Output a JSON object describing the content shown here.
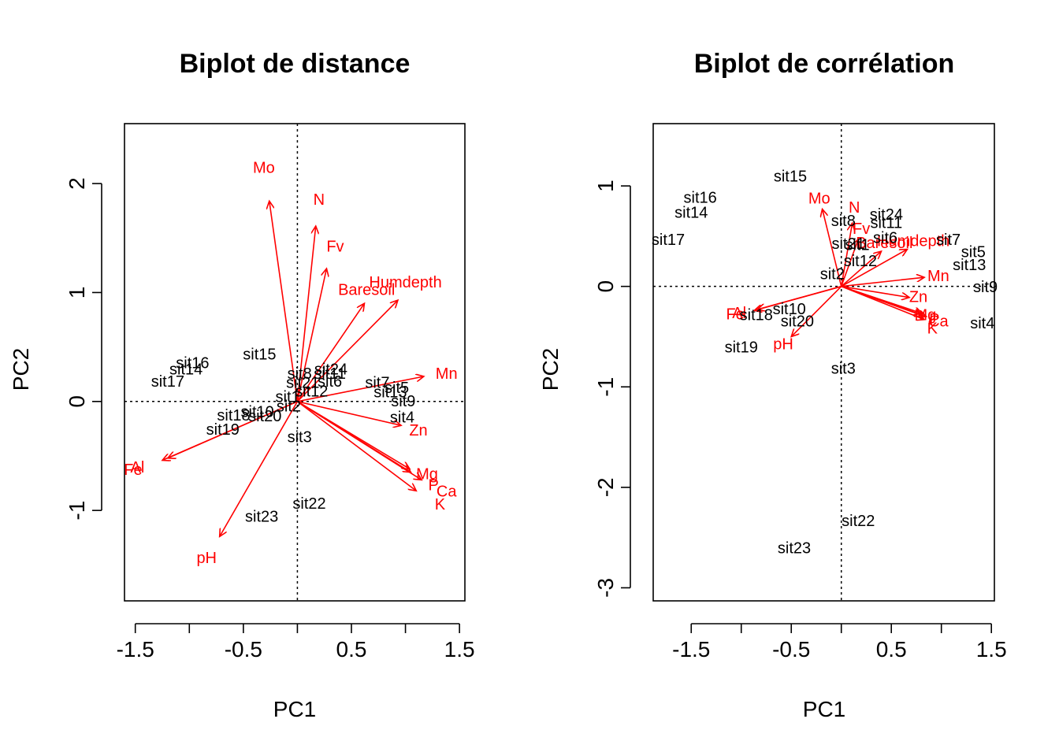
{
  "colors": {
    "sites": "#000000",
    "variables": "#ff0000"
  },
  "chart_data": [
    {
      "type": "scatter",
      "title": "Biplot de distance",
      "xlabel": "PC1",
      "ylabel": "PC2",
      "xlim": [
        -1.6,
        1.55
      ],
      "ylim": [
        -1.83,
        2.55
      ],
      "xticks": [
        -1.5,
        -1.0,
        -0.5,
        0.0,
        0.5,
        1.0,
        1.5
      ],
      "xtick_labels": [
        "-1.5",
        "",
        "-0.5",
        "",
        "0.5",
        "",
        "1.5"
      ],
      "yticks": [
        -1,
        0,
        1,
        2
      ],
      "ytick_labels": [
        "-1",
        "0",
        "1",
        "2"
      ],
      "sites": [
        {
          "label": "sit1",
          "x": -0.09,
          "y": 0.04
        },
        {
          "label": "sit2",
          "x": -0.08,
          "y": -0.05
        },
        {
          "label": "sit3",
          "x": 0.02,
          "y": -0.33
        },
        {
          "label": "sit4",
          "x": 0.97,
          "y": -0.15
        },
        {
          "label": "sit5",
          "x": 0.92,
          "y": 0.12
        },
        {
          "label": "sit6",
          "x": 0.3,
          "y": 0.18
        },
        {
          "label": "sit7",
          "x": 0.74,
          "y": 0.17
        },
        {
          "label": "sit8",
          "x": 0.02,
          "y": 0.25
        },
        {
          "label": "sit9",
          "x": 0.98,
          "y": 0.0
        },
        {
          "label": "sit10",
          "x": -0.37,
          "y": -0.1
        },
        {
          "label": "sit11",
          "x": 0.3,
          "y": 0.25
        },
        {
          "label": "sit12",
          "x": 0.13,
          "y": 0.09
        },
        {
          "label": "sit13",
          "x": 0.86,
          "y": 0.08
        },
        {
          "label": "sit14",
          "x": -1.03,
          "y": 0.29
        },
        {
          "label": "sit15",
          "x": -0.35,
          "y": 0.43
        },
        {
          "label": "sit16",
          "x": -0.97,
          "y": 0.35
        },
        {
          "label": "sit17",
          "x": -1.2,
          "y": 0.18
        },
        {
          "label": "sit18",
          "x": -0.59,
          "y": -0.13
        },
        {
          "label": "sit19",
          "x": -0.69,
          "y": -0.26
        },
        {
          "label": "sit20",
          "x": -0.3,
          "y": -0.14
        },
        {
          "label": "sit21",
          "x": 0.05,
          "y": 0.17
        },
        {
          "label": "sit22",
          "x": 0.11,
          "y": -0.94
        },
        {
          "label": "sit23",
          "x": -0.33,
          "y": -1.06
        },
        {
          "label": "sit24",
          "x": 0.31,
          "y": 0.29
        }
      ],
      "variables": [
        {
          "label": "N",
          "x": 0.17,
          "y": 1.61,
          "lx": 0.2,
          "ly": 1.85
        },
        {
          "label": "P",
          "x": 1.05,
          "y": -0.65,
          "lx": 1.26,
          "ly": -0.77
        },
        {
          "label": "K",
          "x": 1.1,
          "y": -0.82,
          "lx": 1.32,
          "ly": -0.95
        },
        {
          "label": "Ca",
          "x": 1.15,
          "y": -0.72,
          "lx": 1.38,
          "ly": -0.83
        },
        {
          "label": "Mg",
          "x": 1.04,
          "y": -0.62,
          "lx": 1.2,
          "ly": -0.67
        },
        {
          "label": "Zn",
          "x": 0.96,
          "y": -0.22,
          "lx": 1.12,
          "ly": -0.27
        },
        {
          "label": "Mn",
          "x": 1.17,
          "y": 0.23,
          "lx": 1.38,
          "ly": 0.25
        },
        {
          "label": "Humdepth",
          "x": 0.93,
          "y": 0.93,
          "lx": 1.0,
          "ly": 1.09
        },
        {
          "label": "Baresoil",
          "x": 0.62,
          "y": 0.9,
          "lx": 0.64,
          "ly": 1.02
        },
        {
          "label": "Fv",
          "x": 0.27,
          "y": 1.22,
          "lx": 0.35,
          "ly": 1.42
        },
        {
          "label": "Al",
          "x": -1.2,
          "y": -0.52,
          "lx": -1.48,
          "ly": -0.61
        },
        {
          "label": "Fe",
          "x": -1.25,
          "y": -0.54,
          "lx": -1.52,
          "ly": -0.63
        },
        {
          "label": "pH",
          "x": -0.72,
          "y": -1.24,
          "lx": -0.84,
          "ly": -1.44
        },
        {
          "label": "Mo",
          "x": -0.26,
          "y": 1.84,
          "lx": -0.31,
          "ly": 2.14
        }
      ]
    },
    {
      "type": "scatter",
      "title": "Biplot de corrélation",
      "xlabel": "PC1",
      "ylabel": "PC2",
      "xlim": [
        -1.88,
        1.53
      ],
      "ylim": [
        -3.13,
        1.62
      ],
      "xticks": [
        -1.5,
        -1.0,
        -0.5,
        0.0,
        0.5,
        1.0,
        1.5
      ],
      "xtick_labels": [
        "-1.5",
        "",
        "-0.5",
        "",
        "0.5",
        "",
        "1.5"
      ],
      "yticks": [
        -3,
        -2,
        -1,
        0,
        1
      ],
      "ytick_labels": [
        "-3",
        "-2",
        "-1",
        "0",
        "1"
      ],
      "sites": [
        {
          "label": "sit1",
          "x": 0.16,
          "y": 0.41
        },
        {
          "label": "sit2",
          "x": -0.09,
          "y": 0.12
        },
        {
          "label": "sit3",
          "x": 0.02,
          "y": -0.82
        },
        {
          "label": "sit4",
          "x": 1.41,
          "y": -0.37
        },
        {
          "label": "sit5",
          "x": 1.32,
          "y": 0.34
        },
        {
          "label": "sit6",
          "x": 0.44,
          "y": 0.48
        },
        {
          "label": "sit7",
          "x": 1.07,
          "y": 0.46
        },
        {
          "label": "sit8",
          "x": 0.02,
          "y": 0.65
        },
        {
          "label": "sit9",
          "x": 1.44,
          "y": -0.01
        },
        {
          "label": "sit10",
          "x": -0.52,
          "y": -0.23
        },
        {
          "label": "sit11",
          "x": 0.45,
          "y": 0.63
        },
        {
          "label": "sit12",
          "x": 0.19,
          "y": 0.25
        },
        {
          "label": "sit13",
          "x": 1.28,
          "y": 0.21
        },
        {
          "label": "sit14",
          "x": -1.5,
          "y": 0.73
        },
        {
          "label": "sit15",
          "x": -0.51,
          "y": 1.09
        },
        {
          "label": "sit16",
          "x": -1.41,
          "y": 0.88
        },
        {
          "label": "sit17",
          "x": -1.73,
          "y": 0.46
        },
        {
          "label": "sit18",
          "x": -0.85,
          "y": -0.29
        },
        {
          "label": "sit19",
          "x": -1.0,
          "y": -0.61
        },
        {
          "label": "sit20",
          "x": -0.44,
          "y": -0.35
        },
        {
          "label": "sit21",
          "x": 0.07,
          "y": 0.42
        },
        {
          "label": "sit22",
          "x": 0.17,
          "y": -2.34
        },
        {
          "label": "sit23",
          "x": -0.47,
          "y": -2.61
        },
        {
          "label": "sit24",
          "x": 0.45,
          "y": 0.71
        }
      ],
      "variables": [
        {
          "label": "N",
          "x": 0.11,
          "y": 0.63,
          "lx": 0.13,
          "ly": 0.78
        },
        {
          "label": "P",
          "x": 0.81,
          "y": -0.29,
          "lx": 0.93,
          "ly": -0.33
        },
        {
          "label": "K",
          "x": 0.83,
          "y": -0.33,
          "lx": 0.91,
          "ly": -0.42
        },
        {
          "label": "Ca",
          "x": 0.85,
          "y": -0.3,
          "lx": 0.97,
          "ly": -0.35
        },
        {
          "label": "Mg",
          "x": 0.81,
          "y": -0.27,
          "lx": 0.84,
          "ly": -0.29
        },
        {
          "label": "Zn",
          "x": 0.68,
          "y": -0.11,
          "lx": 0.77,
          "ly": -0.11
        },
        {
          "label": "Mn",
          "x": 0.83,
          "y": 0.09,
          "lx": 0.97,
          "ly": 0.1
        },
        {
          "label": "Humdepth",
          "x": 0.66,
          "y": 0.37,
          "lx": 0.72,
          "ly": 0.45
        },
        {
          "label": "Baresoil",
          "x": 0.4,
          "y": 0.35,
          "lx": 0.43,
          "ly": 0.43
        },
        {
          "label": "Fv",
          "x": 0.17,
          "y": 0.47,
          "lx": 0.2,
          "ly": 0.57
        },
        {
          "label": "Al",
          "x": -0.84,
          "y": -0.23,
          "lx": -1.02,
          "ly": -0.27
        },
        {
          "label": "Fe",
          "x": -0.87,
          "y": -0.24,
          "lx": -1.06,
          "ly": -0.28
        },
        {
          "label": "pH",
          "x": -0.5,
          "y": -0.5,
          "lx": -0.58,
          "ly": -0.58
        },
        {
          "label": "Mo",
          "x": -0.19,
          "y": 0.77,
          "lx": -0.22,
          "ly": 0.87
        }
      ]
    }
  ]
}
